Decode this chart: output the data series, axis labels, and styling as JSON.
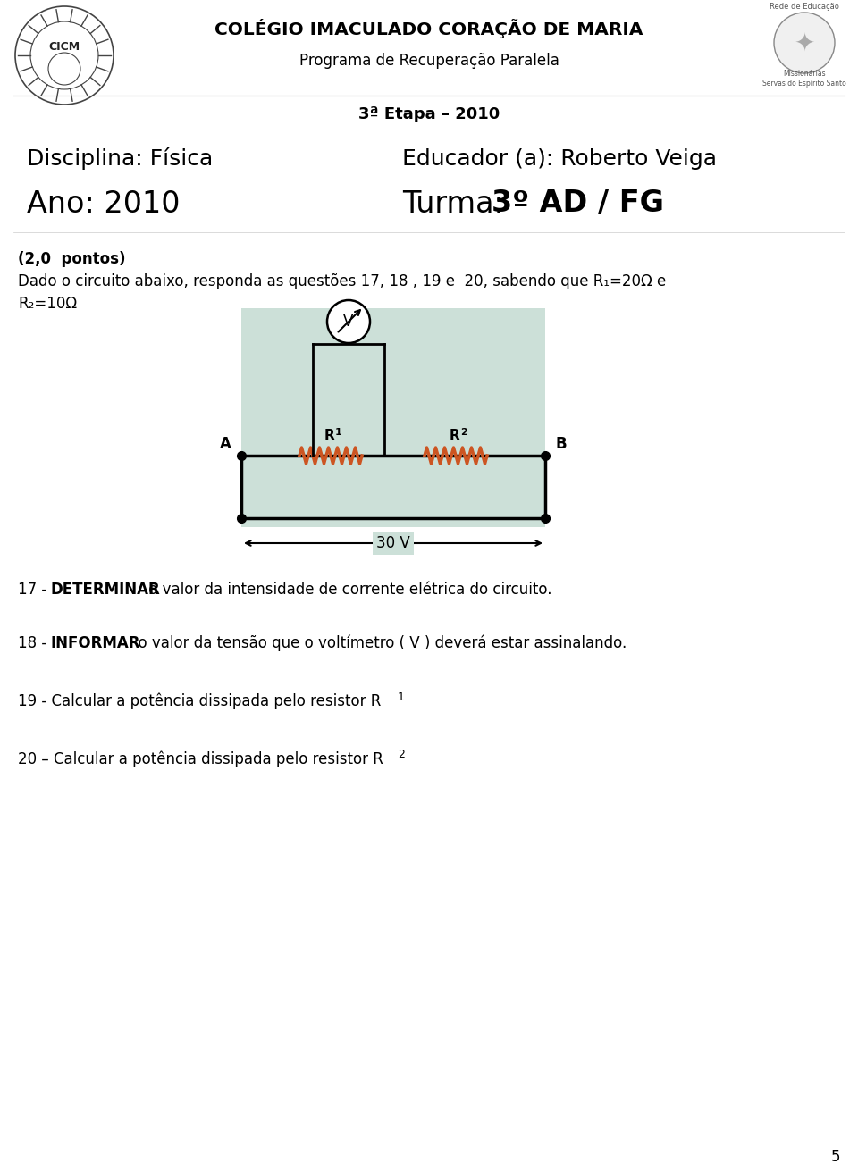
{
  "title": "COLÉGIO IMACULADO CORAÇÃO DE MARIA",
  "subtitle": "Programa de Recuperação Paralela",
  "etapa": "3ª Etapa – 2010",
  "disciplina": "Disciplina: Física",
  "educador": "Educador (a): Roberto Veiga",
  "ano": "Ano: 2010",
  "turma_prefix": "Turma: ",
  "turma_bold": "3º AD / FG",
  "pontos": "(2,0  pontos)",
  "dado_line1": "Dado o circuito abaixo, responda as questões 17, 18 , 19 e  20, sabendo que R₁=20Ω e",
  "dado_line2": "R₂=10Ω",
  "page_num": "5",
  "bg_color": "#ffffff",
  "text_color": "#000000",
  "circuit_bg": "#cce0d8",
  "resistor_color": "#cc5522"
}
